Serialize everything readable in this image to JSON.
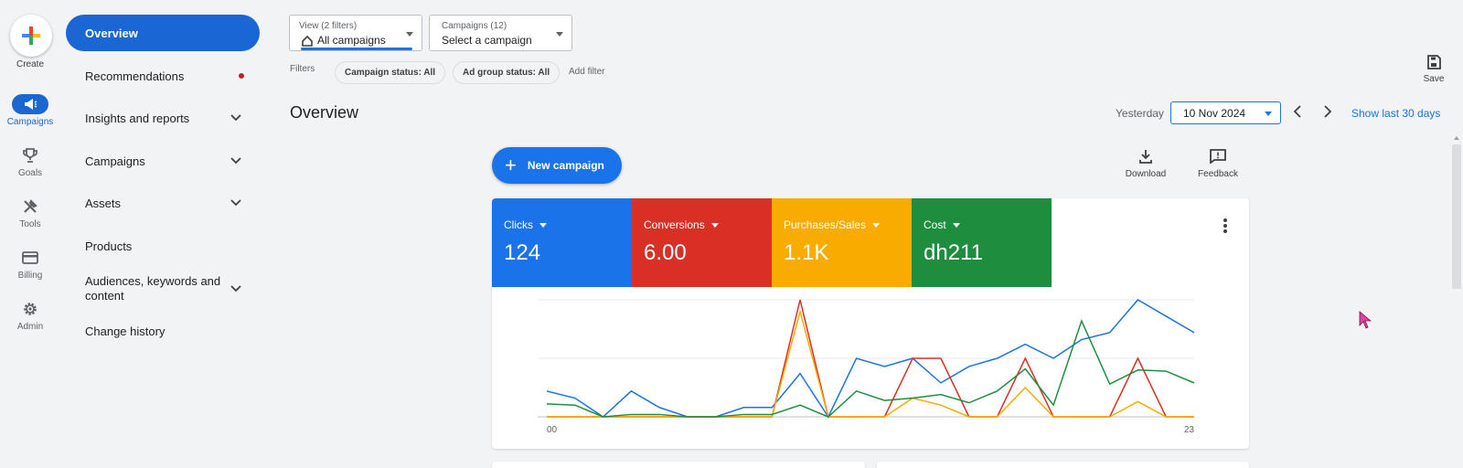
{
  "rail": {
    "create_label": "Create",
    "items": [
      {
        "label": "Campaigns",
        "icon": "megaphone-icon",
        "active": true
      },
      {
        "label": "Goals",
        "icon": "trophy-icon"
      },
      {
        "label": "Tools",
        "icon": "tools-icon"
      },
      {
        "label": "Billing",
        "icon": "credit-card-icon"
      },
      {
        "label": "Admin",
        "icon": "gear-icon"
      }
    ]
  },
  "nav": {
    "items": [
      {
        "label": "Overview",
        "active": true
      },
      {
        "label": "Recommendations",
        "badge": "red-dot"
      },
      {
        "label": "Insights and reports",
        "expandable": true
      },
      {
        "label": "Campaigns",
        "expandable": true
      },
      {
        "label": "Assets",
        "expandable": true
      },
      {
        "label": "Products"
      },
      {
        "label": "Audiences, keywords and content",
        "expandable": true
      },
      {
        "label": "Change history"
      }
    ]
  },
  "view_selector": {
    "small": "View (2 filters)",
    "value": "All campaigns"
  },
  "campaign_selector": {
    "small": "Campaigns (12)",
    "value": "Select a campaign"
  },
  "filters": {
    "label": "Filters",
    "chips": [
      "Campaign status: All",
      "Ad group status: All"
    ],
    "add_filter": "Add filter"
  },
  "save_label": "Save",
  "page_title": "Overview",
  "date": {
    "preset": "Yesterday",
    "value": "10 Nov 2024",
    "show_last": "Show last 30 days"
  },
  "new_campaign_label": "New campaign",
  "download_label": "Download",
  "feedback_label": "Feedback",
  "metrics": [
    {
      "label": "Clicks",
      "value": "124",
      "color": "#1a73e8"
    },
    {
      "label": "Conversions",
      "value": "6.00",
      "color": "#d93025"
    },
    {
      "label": "Purchases/Sales",
      "value": "1.1K",
      "color": "#f9ab00"
    },
    {
      "label": "Cost",
      "value": "dh211",
      "color": "#1e8e3e"
    }
  ],
  "chart_data": {
    "type": "line",
    "x_tick_labels": [
      "00",
      "23"
    ],
    "x": [
      0,
      1,
      2,
      3,
      4,
      5,
      6,
      7,
      8,
      9,
      10,
      11,
      12,
      13,
      14,
      15,
      16,
      17,
      18,
      19,
      20,
      21,
      22,
      23
    ],
    "series": [
      {
        "color": "#1a73e8",
        "values": [
          22,
          16,
          0,
          22,
          8,
          0,
          0,
          8,
          8,
          37,
          0,
          50,
          43,
          50,
          29,
          43,
          50,
          62,
          50,
          66,
          72,
          100,
          86,
          72
        ]
      },
      {
        "color": "#d93025",
        "values": [
          0,
          0,
          0,
          0,
          0,
          0,
          0,
          0,
          0,
          100,
          0,
          0,
          0,
          50,
          50,
          0,
          0,
          50,
          0,
          0,
          0,
          50,
          0,
          0
        ]
      },
      {
        "color": "#f9ab00",
        "values": [
          0,
          0,
          0,
          0,
          0,
          0,
          0,
          0,
          0,
          90,
          0,
          0,
          0,
          16,
          10,
          0,
          0,
          25,
          0,
          0,
          0,
          13,
          0,
          0
        ]
      },
      {
        "color": "#1e8e3e",
        "values": [
          11,
          10,
          0,
          2,
          2,
          0,
          0,
          2,
          2,
          10,
          0,
          22,
          14,
          16,
          19,
          12,
          22,
          41,
          10,
          82,
          28,
          40,
          39,
          29
        ]
      }
    ],
    "ylim": [
      0,
      100
    ],
    "grid": true
  }
}
